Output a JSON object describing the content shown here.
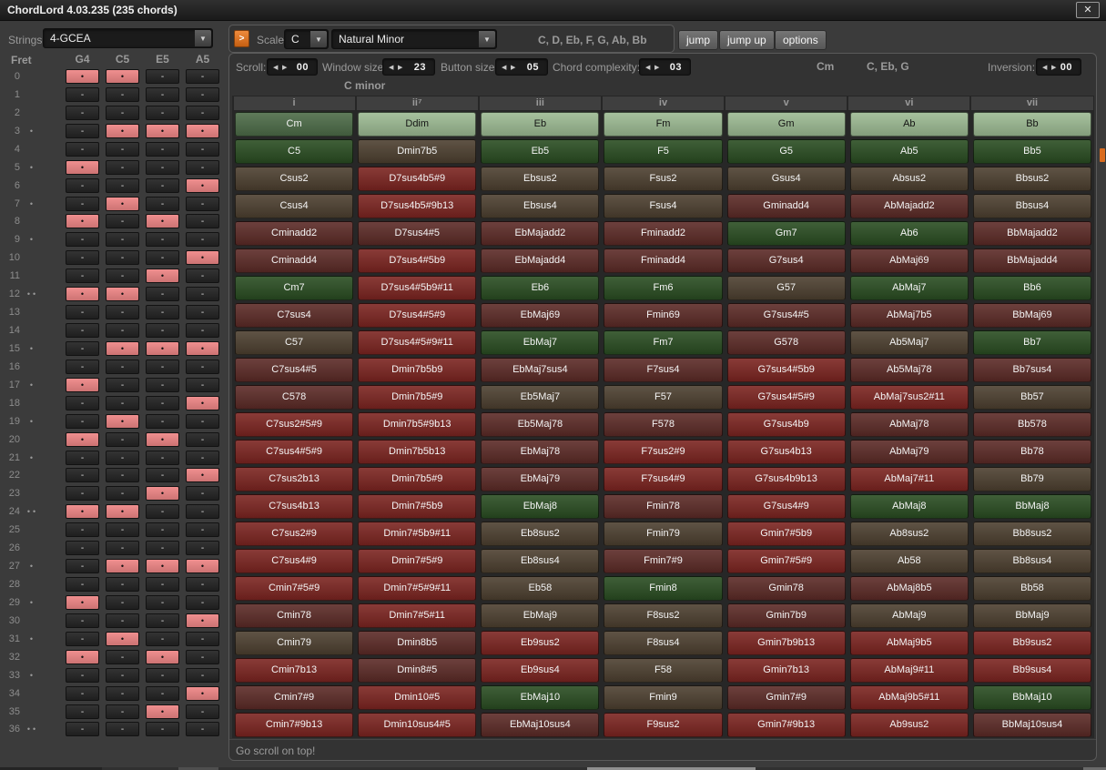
{
  "window": {
    "title": "ChordLord 4.03.235 (235 chords)"
  },
  "toolbar": {
    "strings_label": "Strings:",
    "strings_value": "4-GCEA",
    "scale_label": "Scale:",
    "scale_root": "C",
    "scale_type": "Natural Minor",
    "scale_notes": "C, D, Eb, F, G, Ab, Bb",
    "jump_label": "jump",
    "jump_up_label": "jump up",
    "options_label": "options"
  },
  "controls": {
    "scroll_label": "Scroll:",
    "scroll_value": "00",
    "window_size_label": "Window size:",
    "window_size_value": "23",
    "button_size_label": "Button size:",
    "button_size_value": "05",
    "chord_complexity_label": "Chord complexity:",
    "chord_complexity_value": "03",
    "current_chord": "Cm",
    "current_notes": "C, Eb, G",
    "inversion_label": "Inversion:",
    "inversion_value": "00"
  },
  "scale_title": "C minor",
  "status": "Go scroll on top!",
  "colors": {
    "accent_orange": "#d96b1e",
    "fret_on": "#ee8686",
    "fret_off": "#242424",
    "tones": {
      "sel": "#4d6c48",
      "lg": "#9dbb93",
      "g": "#2a4d22",
      "br": "#4d4030",
      "mr": "#5c2b27",
      "rd": "#7c2521"
    }
  },
  "fretboard": {
    "header": "Fret",
    "strings": [
      "G4",
      "C5",
      "E5",
      "A5"
    ],
    "on_symbol": "•",
    "off_symbol": "-",
    "frets": [
      {
        "fret": 0,
        "dots": 0,
        "on": [
          1,
          1,
          0,
          0
        ]
      },
      {
        "fret": 1,
        "dots": 0,
        "on": [
          0,
          0,
          0,
          0
        ]
      },
      {
        "fret": 2,
        "dots": 0,
        "on": [
          0,
          0,
          0,
          0
        ]
      },
      {
        "fret": 3,
        "dots": 1,
        "on": [
          0,
          1,
          1,
          1
        ]
      },
      {
        "fret": 4,
        "dots": 0,
        "on": [
          0,
          0,
          0,
          0
        ]
      },
      {
        "fret": 5,
        "dots": 1,
        "on": [
          1,
          0,
          0,
          0
        ]
      },
      {
        "fret": 6,
        "dots": 0,
        "on": [
          0,
          0,
          0,
          1
        ]
      },
      {
        "fret": 7,
        "dots": 1,
        "on": [
          0,
          1,
          0,
          0
        ]
      },
      {
        "fret": 8,
        "dots": 0,
        "on": [
          1,
          0,
          1,
          0
        ]
      },
      {
        "fret": 9,
        "dots": 1,
        "on": [
          0,
          0,
          0,
          0
        ]
      },
      {
        "fret": 10,
        "dots": 0,
        "on": [
          0,
          0,
          0,
          1
        ]
      },
      {
        "fret": 11,
        "dots": 0,
        "on": [
          0,
          0,
          1,
          0
        ]
      },
      {
        "fret": 12,
        "dots": 2,
        "on": [
          1,
          1,
          0,
          0
        ]
      },
      {
        "fret": 13,
        "dots": 0,
        "on": [
          0,
          0,
          0,
          0
        ]
      },
      {
        "fret": 14,
        "dots": 0,
        "on": [
          0,
          0,
          0,
          0
        ]
      },
      {
        "fret": 15,
        "dots": 1,
        "on": [
          0,
          1,
          1,
          1
        ]
      },
      {
        "fret": 16,
        "dots": 0,
        "on": [
          0,
          0,
          0,
          0
        ]
      },
      {
        "fret": 17,
        "dots": 1,
        "on": [
          1,
          0,
          0,
          0
        ]
      },
      {
        "fret": 18,
        "dots": 0,
        "on": [
          0,
          0,
          0,
          1
        ]
      },
      {
        "fret": 19,
        "dots": 1,
        "on": [
          0,
          1,
          0,
          0
        ]
      },
      {
        "fret": 20,
        "dots": 0,
        "on": [
          1,
          0,
          1,
          0
        ]
      },
      {
        "fret": 21,
        "dots": 1,
        "on": [
          0,
          0,
          0,
          0
        ]
      },
      {
        "fret": 22,
        "dots": 0,
        "on": [
          0,
          0,
          0,
          1
        ]
      },
      {
        "fret": 23,
        "dots": 0,
        "on": [
          0,
          0,
          1,
          0
        ]
      },
      {
        "fret": 24,
        "dots": 2,
        "on": [
          1,
          1,
          0,
          0
        ]
      },
      {
        "fret": 25,
        "dots": 0,
        "on": [
          0,
          0,
          0,
          0
        ]
      },
      {
        "fret": 26,
        "dots": 0,
        "on": [
          0,
          0,
          0,
          0
        ]
      },
      {
        "fret": 27,
        "dots": 1,
        "on": [
          0,
          1,
          1,
          1
        ]
      },
      {
        "fret": 28,
        "dots": 0,
        "on": [
          0,
          0,
          0,
          0
        ]
      },
      {
        "fret": 29,
        "dots": 1,
        "on": [
          1,
          0,
          0,
          0
        ]
      },
      {
        "fret": 30,
        "dots": 0,
        "on": [
          0,
          0,
          0,
          1
        ]
      },
      {
        "fret": 31,
        "dots": 1,
        "on": [
          0,
          1,
          0,
          0
        ]
      },
      {
        "fret": 32,
        "dots": 0,
        "on": [
          1,
          0,
          1,
          0
        ]
      },
      {
        "fret": 33,
        "dots": 1,
        "on": [
          0,
          0,
          0,
          0
        ]
      },
      {
        "fret": 34,
        "dots": 0,
        "on": [
          0,
          0,
          0,
          1
        ]
      },
      {
        "fret": 35,
        "dots": 0,
        "on": [
          0,
          0,
          1,
          0
        ]
      },
      {
        "fret": 36,
        "dots": 2,
        "on": [
          0,
          0,
          0,
          0
        ]
      }
    ]
  },
  "grid": {
    "degrees": [
      "i",
      "ii⁷",
      "iii",
      "iv",
      "v",
      "vi",
      "vii"
    ],
    "rows": [
      [
        {
          "l": "Cm",
          "t": "sel"
        },
        {
          "l": "Ddim",
          "t": "lg"
        },
        {
          "l": "Eb",
          "t": "lg"
        },
        {
          "l": "Fm",
          "t": "lg"
        },
        {
          "l": "Gm",
          "t": "lg"
        },
        {
          "l": "Ab",
          "t": "lg"
        },
        {
          "l": "Bb",
          "t": "lg"
        }
      ],
      [
        {
          "l": "C5",
          "t": "g"
        },
        {
          "l": "Dmin7b5",
          "t": "br"
        },
        {
          "l": "Eb5",
          "t": "g"
        },
        {
          "l": "F5",
          "t": "g"
        },
        {
          "l": "G5",
          "t": "g"
        },
        {
          "l": "Ab5",
          "t": "g"
        },
        {
          "l": "Bb5",
          "t": "g"
        }
      ],
      [
        {
          "l": "Csus2",
          "t": "br"
        },
        {
          "l": "D7sus4b5#9",
          "t": "rd"
        },
        {
          "l": "Ebsus2",
          "t": "br"
        },
        {
          "l": "Fsus2",
          "t": "br"
        },
        {
          "l": "Gsus4",
          "t": "br"
        },
        {
          "l": "Absus2",
          "t": "br"
        },
        {
          "l": "Bbsus2",
          "t": "br"
        }
      ],
      [
        {
          "l": "Csus4",
          "t": "br"
        },
        {
          "l": "D7sus4b5#9b13",
          "t": "rd"
        },
        {
          "l": "Ebsus4",
          "t": "br"
        },
        {
          "l": "Fsus4",
          "t": "br"
        },
        {
          "l": "Gminadd4",
          "t": "mr"
        },
        {
          "l": "AbMajadd2",
          "t": "mr"
        },
        {
          "l": "Bbsus4",
          "t": "br"
        }
      ],
      [
        {
          "l": "Cminadd2",
          "t": "mr"
        },
        {
          "l": "D7sus4#5",
          "t": "mr"
        },
        {
          "l": "EbMajadd2",
          "t": "mr"
        },
        {
          "l": "Fminadd2",
          "t": "mr"
        },
        {
          "l": "Gm7",
          "t": "g"
        },
        {
          "l": "Ab6",
          "t": "g"
        },
        {
          "l": "BbMajadd2",
          "t": "mr"
        }
      ],
      [
        {
          "l": "Cminadd4",
          "t": "mr"
        },
        {
          "l": "D7sus4#5b9",
          "t": "rd"
        },
        {
          "l": "EbMajadd4",
          "t": "mr"
        },
        {
          "l": "Fminadd4",
          "t": "mr"
        },
        {
          "l": "G7sus4",
          "t": "mr"
        },
        {
          "l": "AbMaj69",
          "t": "mr"
        },
        {
          "l": "BbMajadd4",
          "t": "mr"
        }
      ],
      [
        {
          "l": "Cm7",
          "t": "g"
        },
        {
          "l": "D7sus4#5b9#11",
          "t": "rd"
        },
        {
          "l": "Eb6",
          "t": "g"
        },
        {
          "l": "Fm6",
          "t": "g"
        },
        {
          "l": "G57",
          "t": "br"
        },
        {
          "l": "AbMaj7",
          "t": "g"
        },
        {
          "l": "Bb6",
          "t": "g"
        }
      ],
      [
        {
          "l": "C7sus4",
          "t": "mr"
        },
        {
          "l": "D7sus4#5#9",
          "t": "rd"
        },
        {
          "l": "EbMaj69",
          "t": "mr"
        },
        {
          "l": "Fmin69",
          "t": "mr"
        },
        {
          "l": "G7sus4#5",
          "t": "mr"
        },
        {
          "l": "AbMaj7b5",
          "t": "mr"
        },
        {
          "l": "BbMaj69",
          "t": "mr"
        }
      ],
      [
        {
          "l": "C57",
          "t": "br"
        },
        {
          "l": "D7sus4#5#9#11",
          "t": "rd"
        },
        {
          "l": "EbMaj7",
          "t": "g"
        },
        {
          "l": "Fm7",
          "t": "g"
        },
        {
          "l": "G578",
          "t": "mr"
        },
        {
          "l": "Ab5Maj7",
          "t": "br"
        },
        {
          "l": "Bb7",
          "t": "g"
        }
      ],
      [
        {
          "l": "C7sus4#5",
          "t": "mr"
        },
        {
          "l": "Dmin7b5b9",
          "t": "rd"
        },
        {
          "l": "EbMaj7sus4",
          "t": "mr"
        },
        {
          "l": "F7sus4",
          "t": "mr"
        },
        {
          "l": "G7sus4#5b9",
          "t": "rd"
        },
        {
          "l": "Ab5Maj78",
          "t": "mr"
        },
        {
          "l": "Bb7sus4",
          "t": "mr"
        }
      ],
      [
        {
          "l": "C578",
          "t": "mr"
        },
        {
          "l": "Dmin7b5#9",
          "t": "rd"
        },
        {
          "l": "Eb5Maj7",
          "t": "br"
        },
        {
          "l": "F57",
          "t": "br"
        },
        {
          "l": "G7sus4#5#9",
          "t": "rd"
        },
        {
          "l": "AbMaj7sus2#11",
          "t": "rd"
        },
        {
          "l": "Bb57",
          "t": "br"
        }
      ],
      [
        {
          "l": "C7sus2#5#9",
          "t": "rd"
        },
        {
          "l": "Dmin7b5#9b13",
          "t": "rd"
        },
        {
          "l": "Eb5Maj78",
          "t": "mr"
        },
        {
          "l": "F578",
          "t": "mr"
        },
        {
          "l": "G7sus4b9",
          "t": "rd"
        },
        {
          "l": "AbMaj78",
          "t": "mr"
        },
        {
          "l": "Bb578",
          "t": "mr"
        }
      ],
      [
        {
          "l": "C7sus4#5#9",
          "t": "rd"
        },
        {
          "l": "Dmin7b5b13",
          "t": "rd"
        },
        {
          "l": "EbMaj78",
          "t": "mr"
        },
        {
          "l": "F7sus2#9",
          "t": "rd"
        },
        {
          "l": "G7sus4b13",
          "t": "rd"
        },
        {
          "l": "AbMaj79",
          "t": "mr"
        },
        {
          "l": "Bb78",
          "t": "mr"
        }
      ],
      [
        {
          "l": "C7sus2b13",
          "t": "rd"
        },
        {
          "l": "Dmin7b5#9",
          "t": "rd"
        },
        {
          "l": "EbMaj79",
          "t": "mr"
        },
        {
          "l": "F7sus4#9",
          "t": "rd"
        },
        {
          "l": "G7sus4b9b13",
          "t": "rd"
        },
        {
          "l": "AbMaj7#11",
          "t": "rd"
        },
        {
          "l": "Bb79",
          "t": "br"
        }
      ],
      [
        {
          "l": "C7sus4b13",
          "t": "rd"
        },
        {
          "l": "Dmin7#5b9",
          "t": "rd"
        },
        {
          "l": "EbMaj8",
          "t": "g"
        },
        {
          "l": "Fmin78",
          "t": "mr"
        },
        {
          "l": "G7sus4#9",
          "t": "rd"
        },
        {
          "l": "AbMaj8",
          "t": "g"
        },
        {
          "l": "BbMaj8",
          "t": "g"
        }
      ],
      [
        {
          "l": "C7sus2#9",
          "t": "rd"
        },
        {
          "l": "Dmin7#5b9#11",
          "t": "rd"
        },
        {
          "l": "Eb8sus2",
          "t": "br"
        },
        {
          "l": "Fmin79",
          "t": "br"
        },
        {
          "l": "Gmin7#5b9",
          "t": "rd"
        },
        {
          "l": "Ab8sus2",
          "t": "br"
        },
        {
          "l": "Bb8sus2",
          "t": "br"
        }
      ],
      [
        {
          "l": "C7sus4#9",
          "t": "rd"
        },
        {
          "l": "Dmin7#5#9",
          "t": "rd"
        },
        {
          "l": "Eb8sus4",
          "t": "br"
        },
        {
          "l": "Fmin7#9",
          "t": "mr"
        },
        {
          "l": "Gmin7#5#9",
          "t": "rd"
        },
        {
          "l": "Ab58",
          "t": "br"
        },
        {
          "l": "Bb8sus4",
          "t": "br"
        }
      ],
      [
        {
          "l": "Cmin7#5#9",
          "t": "rd"
        },
        {
          "l": "Dmin7#5#9#11",
          "t": "rd"
        },
        {
          "l": "Eb58",
          "t": "br"
        },
        {
          "l": "Fmin8",
          "t": "g"
        },
        {
          "l": "Gmin78",
          "t": "mr"
        },
        {
          "l": "AbMaj8b5",
          "t": "mr"
        },
        {
          "l": "Bb58",
          "t": "br"
        }
      ],
      [
        {
          "l": "Cmin78",
          "t": "mr"
        },
        {
          "l": "Dmin7#5#11",
          "t": "rd"
        },
        {
          "l": "EbMaj9",
          "t": "br"
        },
        {
          "l": "F8sus2",
          "t": "br"
        },
        {
          "l": "Gmin7b9",
          "t": "mr"
        },
        {
          "l": "AbMaj9",
          "t": "br"
        },
        {
          "l": "BbMaj9",
          "t": "br"
        }
      ],
      [
        {
          "l": "Cmin79",
          "t": "br"
        },
        {
          "l": "Dmin8b5",
          "t": "mr"
        },
        {
          "l": "Eb9sus2",
          "t": "rd"
        },
        {
          "l": "F8sus4",
          "t": "br"
        },
        {
          "l": "Gmin7b9b13",
          "t": "rd"
        },
        {
          "l": "AbMaj9b5",
          "t": "rd"
        },
        {
          "l": "Bb9sus2",
          "t": "rd"
        }
      ],
      [
        {
          "l": "Cmin7b13",
          "t": "rd"
        },
        {
          "l": "Dmin8#5",
          "t": "mr"
        },
        {
          "l": "Eb9sus4",
          "t": "rd"
        },
        {
          "l": "F58",
          "t": "br"
        },
        {
          "l": "Gmin7b13",
          "t": "rd"
        },
        {
          "l": "AbMaj9#11",
          "t": "rd"
        },
        {
          "l": "Bb9sus4",
          "t": "rd"
        }
      ],
      [
        {
          "l": "Cmin7#9",
          "t": "mr"
        },
        {
          "l": "Dmin10#5",
          "t": "rd"
        },
        {
          "l": "EbMaj10",
          "t": "g"
        },
        {
          "l": "Fmin9",
          "t": "br"
        },
        {
          "l": "Gmin7#9",
          "t": "mr"
        },
        {
          "l": "AbMaj9b5#11",
          "t": "rd"
        },
        {
          "l": "BbMaj10",
          "t": "g"
        }
      ],
      [
        {
          "l": "Cmin7#9b13",
          "t": "rd"
        },
        {
          "l": "Dmin10sus4#5",
          "t": "rd"
        },
        {
          "l": "EbMaj10sus4",
          "t": "mr"
        },
        {
          "l": "F9sus2",
          "t": "rd"
        },
        {
          "l": "Gmin7#9b13",
          "t": "rd"
        },
        {
          "l": "Ab9sus2",
          "t": "rd"
        },
        {
          "l": "BbMaj10sus4",
          "t": "mr"
        }
      ]
    ]
  }
}
